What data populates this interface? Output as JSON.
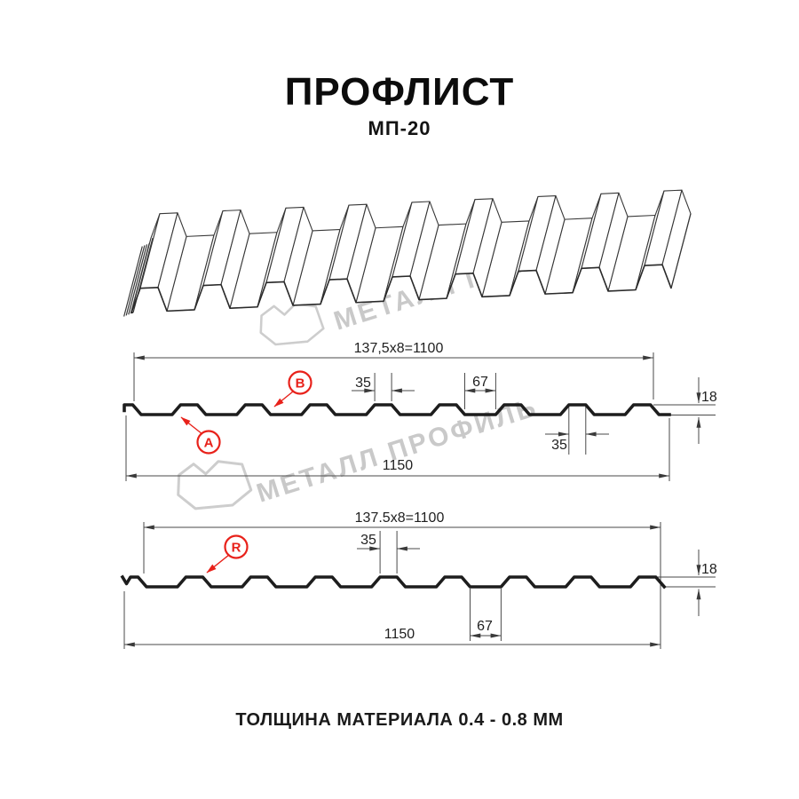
{
  "header": {
    "title": "ПРОФЛИСТ",
    "subtitle": "МП-20"
  },
  "footer": {
    "thickness_note": "ТОЛЩИНА МАТЕРИАЛА 0.4 - 0.8 ММ"
  },
  "watermark": {
    "text": "МЕТАЛЛ ПРОФИЛЬ"
  },
  "colors": {
    "accent_red": "#e8211a",
    "drawing_line": "#2a2a2a",
    "thin_line": "#4a4a4a",
    "watermark_gray": "#c9c9c9"
  },
  "diagram_front": {
    "coverage_width": "137,5x8=1100",
    "rib_top_width": "35",
    "valley_width": "67",
    "rib_top_width_right": "35",
    "profile_height": "18",
    "overall_width": "1150",
    "side_label_a": "A",
    "side_label_b": "B"
  },
  "diagram_back": {
    "coverage_width": "137.5x8=1100",
    "rib_top_width": "35",
    "valley_width": "67",
    "profile_height": "18",
    "overall_width": "1150",
    "side_label_r": "R"
  }
}
